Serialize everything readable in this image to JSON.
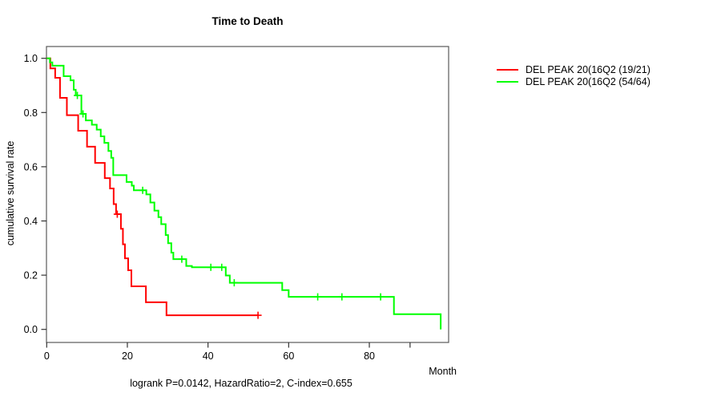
{
  "title": "Time to Death",
  "footer": "logrank P=0.0142, HazardRatio=2, C-index=0.655",
  "axes": {
    "x": {
      "label": "Month",
      "ticks": [
        0,
        20,
        40,
        60,
        80
      ],
      "minor_tick": 90.1,
      "range": [
        0,
        99.7
      ]
    },
    "y": {
      "label": "cumulative survival rate",
      "ticks": [
        0.0,
        0.2,
        0.4,
        0.6,
        0.8,
        1.0
      ],
      "range": [
        0,
        1
      ]
    }
  },
  "legend": {
    "items": [
      {
        "label": "DEL PEAK 20(16Q2 (19/21)",
        "color": "#ff0000"
      },
      {
        "label": "DEL PEAK 20(16Q2 (54/64)",
        "color": "#00ff00"
      }
    ]
  },
  "chart_data": {
    "type": "line",
    "subtype": "kaplan_meier_step",
    "title": "Time to Death",
    "xlabel": "Month",
    "ylabel": "cumulative survival rate",
    "xlim": [
      0,
      100
    ],
    "ylim": [
      0,
      1
    ],
    "grid": false,
    "legend_position": "right-outside",
    "series": [
      {
        "name": "DEL PEAK 20(16Q2 (19/21)",
        "color": "#ff0000",
        "n_total": 21,
        "n_events": 19,
        "points": [
          [
            0,
            1.0
          ],
          [
            0.9,
            0.963
          ],
          [
            2.1,
            0.928
          ],
          [
            3.3,
            0.854
          ],
          [
            5.0,
            0.79
          ],
          [
            7.8,
            0.733
          ],
          [
            10.0,
            0.674
          ],
          [
            12.0,
            0.614
          ],
          [
            14.4,
            0.558
          ],
          [
            15.7,
            0.52
          ],
          [
            16.6,
            0.462
          ],
          [
            17.2,
            0.425
          ],
          [
            18.4,
            0.371
          ],
          [
            18.9,
            0.314
          ],
          [
            19.4,
            0.262
          ],
          [
            20.2,
            0.218
          ],
          [
            21.0,
            0.159
          ],
          [
            24.6,
            0.1
          ],
          [
            29.7,
            0.052
          ]
        ],
        "end_month": 52.4,
        "censors": [
          [
            17.5,
            0.425
          ],
          [
            52.4,
            0.052
          ]
        ]
      },
      {
        "name": "DEL PEAK 20(16Q2 (54/64)",
        "color": "#00ff00",
        "n_total": 64,
        "n_events": 54,
        "points": [
          [
            0,
            1.0
          ],
          [
            0.8,
            0.985
          ],
          [
            1.4,
            0.973
          ],
          [
            4.2,
            0.934
          ],
          [
            5.9,
            0.919
          ],
          [
            6.7,
            0.884
          ],
          [
            7.2,
            0.863
          ],
          [
            8.6,
            0.795
          ],
          [
            9.7,
            0.771
          ],
          [
            11.2,
            0.755
          ],
          [
            12.4,
            0.737
          ],
          [
            13.4,
            0.712
          ],
          [
            14.3,
            0.688
          ],
          [
            15.3,
            0.658
          ],
          [
            16.0,
            0.633
          ],
          [
            16.5,
            0.569
          ],
          [
            19.8,
            0.544
          ],
          [
            21.1,
            0.53
          ],
          [
            21.6,
            0.513
          ],
          [
            24.7,
            0.498
          ],
          [
            25.7,
            0.468
          ],
          [
            26.7,
            0.438
          ],
          [
            27.7,
            0.414
          ],
          [
            28.4,
            0.388
          ],
          [
            29.5,
            0.348
          ],
          [
            30.1,
            0.318
          ],
          [
            30.9,
            0.283
          ],
          [
            31.4,
            0.259
          ],
          [
            34.6,
            0.234
          ],
          [
            36.0,
            0.229
          ],
          [
            44.4,
            0.199
          ],
          [
            45.4,
            0.172
          ],
          [
            58.4,
            0.145
          ],
          [
            60.0,
            0.12
          ],
          [
            86.1,
            0.056
          ],
          [
            97.7,
            0.0
          ]
        ],
        "end_month": 97.7,
        "censors": [
          [
            7.6,
            0.863
          ],
          [
            9.0,
            0.795
          ],
          [
            23.8,
            0.513
          ],
          [
            33.5,
            0.259
          ],
          [
            40.7,
            0.229
          ],
          [
            43.4,
            0.229
          ],
          [
            46.5,
            0.172
          ],
          [
            67.2,
            0.12
          ],
          [
            73.2,
            0.12
          ],
          [
            82.8,
            0.12
          ]
        ]
      }
    ]
  }
}
